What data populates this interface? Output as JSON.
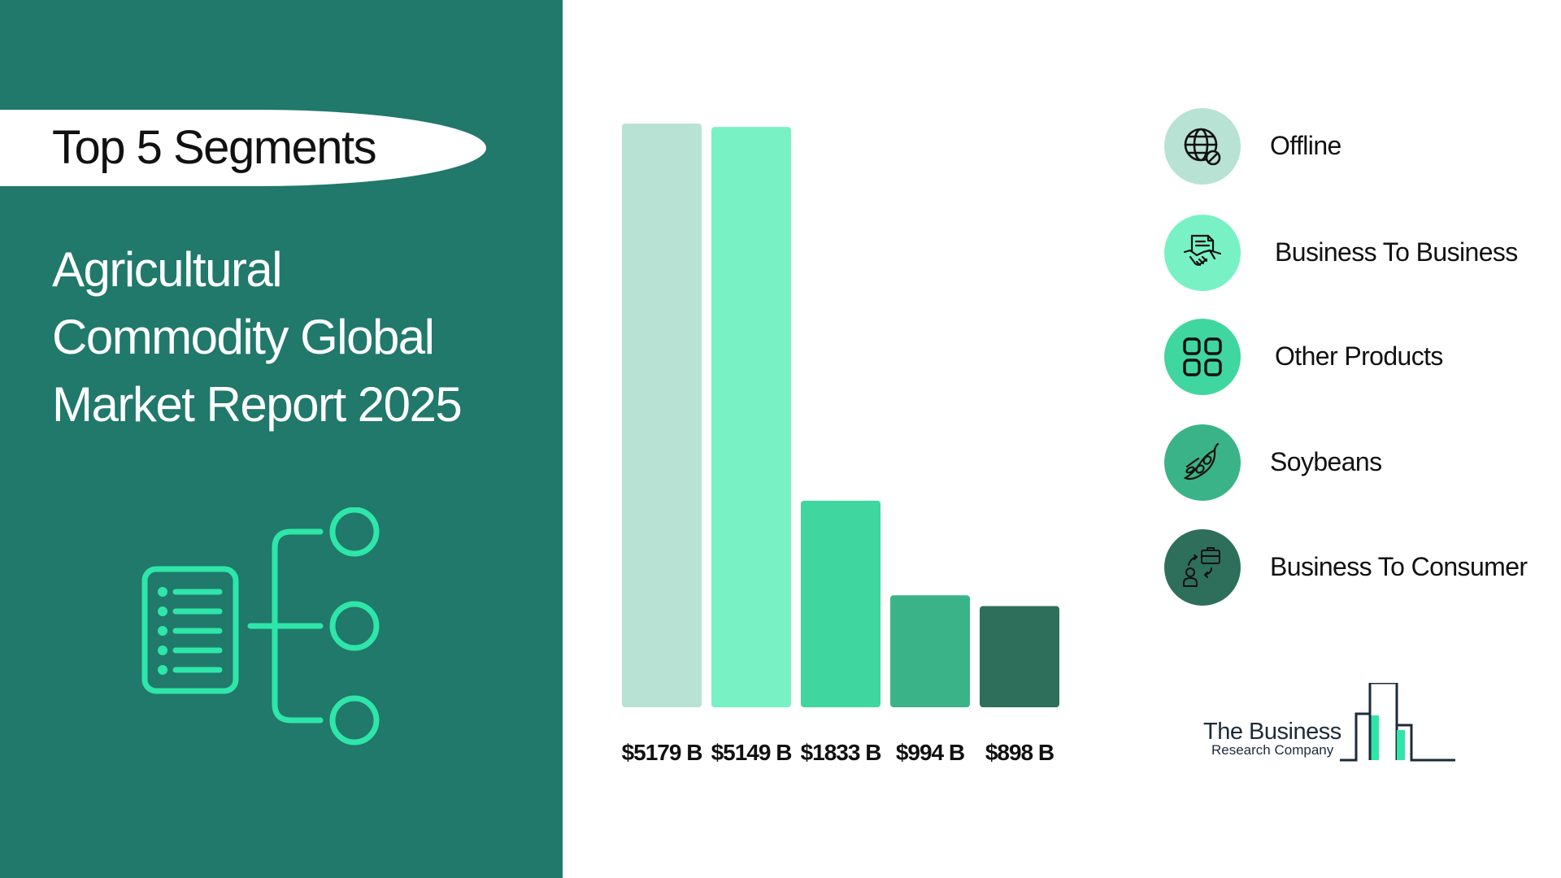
{
  "header": {
    "pill_text": "Top 5 Segments",
    "title_lines": [
      "Agricultural",
      "Commodity Global",
      "Market Report 2025"
    ]
  },
  "icons": {
    "hero": "segment-tree-icon",
    "offline": "globe-blocked-icon",
    "b2b": "handshake-document-icon",
    "other_products": "grid-four-squares-icon",
    "soybeans": "soybean-pod-icon",
    "b2c": "person-briefcase-exchange-icon"
  },
  "colors": {
    "panel_bg": "#20796a",
    "accent": "#2ee6a8",
    "bar_1": "#b8e2d4",
    "bar_2": "#78f2c5",
    "bar_3": "#40d69f",
    "bar_4": "#3bb388",
    "bar_5": "#2e6f5b"
  },
  "chart_data": {
    "type": "bar",
    "title": "",
    "xlabel": "",
    "ylabel": "",
    "categories": [
      "Offline",
      "Business To Business",
      "Other Products",
      "Soybeans",
      "Business To Consumer"
    ],
    "values": [
      5179,
      5149,
      1833,
      994,
      898
    ],
    "value_labels": [
      "$5179 B",
      "$5149 B",
      "$1833 B",
      "$994 B",
      "$898 B"
    ],
    "unit": "B",
    "ylim": [
      0,
      5179
    ],
    "grid": false,
    "legend_position": "right"
  },
  "legend": {
    "items": [
      {
        "label": "Offline"
      },
      {
        "label": "Business To Business"
      },
      {
        "label": "Other Products"
      },
      {
        "label": "Soybeans"
      },
      {
        "label": "Business To Consumer"
      }
    ]
  },
  "logo": {
    "line1": "The Business",
    "line2": "Research Company"
  }
}
